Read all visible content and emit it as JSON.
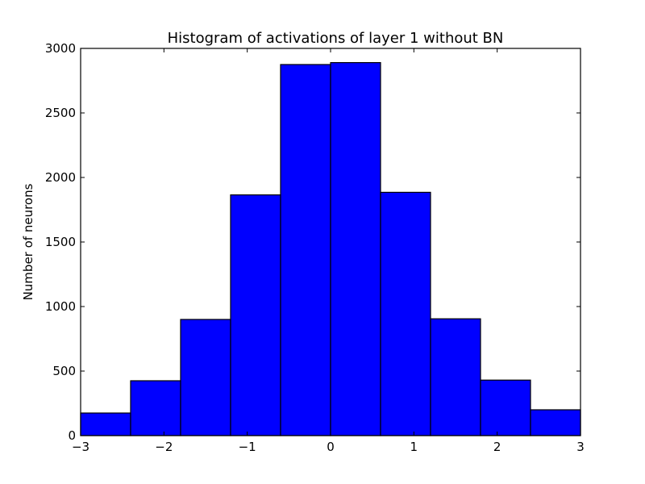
{
  "chart_data": {
    "type": "bar",
    "title": "Histogram of activations of layer 1  without BN",
    "xlabel": "",
    "ylabel": "Number of neurons",
    "xlim": [
      -3,
      3
    ],
    "ylim": [
      0,
      3000
    ],
    "bin_edges": [
      -3,
      -2.4,
      -1.8,
      -1.2,
      -0.6,
      0,
      0.6,
      1.2,
      1.8,
      2.4,
      3
    ],
    "values": [
      175,
      425,
      900,
      1865,
      2875,
      2890,
      1885,
      905,
      430,
      200
    ],
    "x_ticks": [
      -3,
      -2,
      -1,
      0,
      1,
      2,
      3
    ],
    "x_tick_labels": [
      "−3",
      "−2",
      "−1",
      "0",
      "1",
      "2",
      "3"
    ],
    "y_ticks": [
      0,
      500,
      1000,
      1500,
      2000,
      2500,
      3000
    ],
    "y_tick_labels": [
      "0",
      "500",
      "1000",
      "1500",
      "2000",
      "2500",
      "3000"
    ],
    "bar_color": "#0000ff",
    "edge_color": "#000000",
    "grid": false,
    "legend": "none"
  }
}
